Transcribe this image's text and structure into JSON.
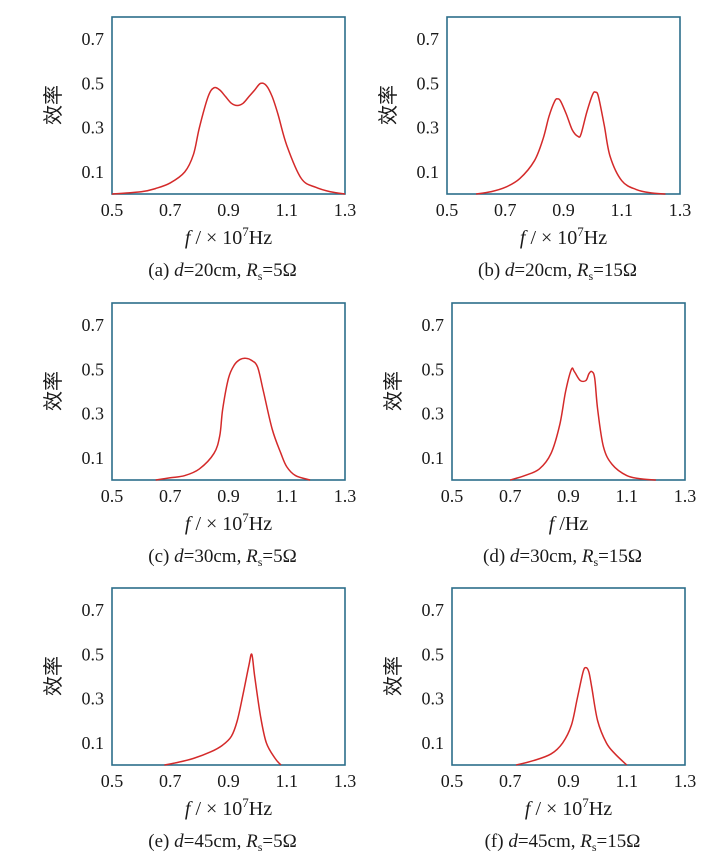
{
  "chart_data": [
    {
      "id": "a",
      "type": "line",
      "caption": "(a) d=20cm, Rs=5Ω",
      "caption_parts": {
        "label": "(a)",
        "d": "=20cm,",
        "r": "=5Ω"
      },
      "xlabel": "f / × 10⁷Hz",
      "xlabel_parts": {
        "pre": "/ × 10",
        "exp": "7",
        "post": "Hz"
      },
      "ylabel": "效率",
      "xlim": [
        0.5,
        1.3
      ],
      "ylim": [
        0,
        0.8
      ],
      "xticks": [
        "0.5",
        "0.7",
        "0.9",
        "1.1",
        "1.3"
      ],
      "yticks": [
        "0.1",
        "0.3",
        "0.5",
        "0.7"
      ],
      "series": [
        {
          "x": [
            0.5,
            0.6,
            0.65,
            0.7,
            0.75,
            0.78,
            0.8,
            0.83,
            0.85,
            0.87,
            0.89,
            0.91,
            0.93,
            0.95,
            0.97,
            0.99,
            1.01,
            1.03,
            1.05,
            1.07,
            1.1,
            1.15,
            1.2,
            1.25,
            1.3
          ],
          "y": [
            0,
            0.01,
            0.025,
            0.05,
            0.1,
            0.18,
            0.3,
            0.44,
            0.48,
            0.47,
            0.44,
            0.41,
            0.4,
            0.41,
            0.44,
            0.47,
            0.5,
            0.49,
            0.44,
            0.36,
            0.22,
            0.07,
            0.03,
            0.01,
            0
          ]
        }
      ]
    },
    {
      "id": "b",
      "type": "line",
      "caption": "(b) d=20cm, Rs=15Ω",
      "caption_parts": {
        "label": "(b)",
        "d": "=20cm,",
        "r": "=15Ω"
      },
      "xlabel": "f / × 10⁷Hz",
      "xlabel_parts": {
        "pre": "/ × 10",
        "exp": "7",
        "post": "Hz"
      },
      "ylabel": "效率",
      "xlim": [
        0.5,
        1.3
      ],
      "ylim": [
        0,
        0.8
      ],
      "xticks": [
        "0.5",
        "0.7",
        "0.9",
        "1.1",
        "1.3"
      ],
      "yticks": [
        "0.1",
        "0.3",
        "0.5",
        "0.7"
      ],
      "series": [
        {
          "x": [
            0.6,
            0.65,
            0.7,
            0.75,
            0.8,
            0.83,
            0.85,
            0.87,
            0.88,
            0.89,
            0.91,
            0.93,
            0.95,
            0.96,
            0.98,
            1.0,
            1.01,
            1.02,
            1.04,
            1.06,
            1.1,
            1.15,
            1.2,
            1.25
          ],
          "y": [
            0,
            0.01,
            0.03,
            0.07,
            0.15,
            0.25,
            0.35,
            0.42,
            0.43,
            0.42,
            0.36,
            0.29,
            0.26,
            0.27,
            0.37,
            0.45,
            0.46,
            0.44,
            0.31,
            0.17,
            0.06,
            0.02,
            0.005,
            0
          ]
        }
      ]
    },
    {
      "id": "c",
      "type": "line",
      "caption": "(c) d=30cm, Rs=5Ω",
      "caption_parts": {
        "label": "(c)",
        "d": "=30cm,",
        "r": "=5Ω"
      },
      "xlabel": "f / × 10⁷Hz",
      "xlabel_parts": {
        "pre": "/ × 10",
        "exp": "7",
        "post": "Hz"
      },
      "ylabel": "效率",
      "xlim": [
        0.5,
        1.3
      ],
      "ylim": [
        0,
        0.8
      ],
      "xticks": [
        "0.5",
        "0.7",
        "0.9",
        "1.1",
        "1.3"
      ],
      "yticks": [
        "0.1",
        "0.3",
        "0.5",
        "0.7"
      ],
      "series": [
        {
          "x": [
            0.65,
            0.7,
            0.75,
            0.8,
            0.85,
            0.87,
            0.88,
            0.9,
            0.92,
            0.94,
            0.96,
            0.98,
            1.0,
            1.02,
            1.05,
            1.08,
            1.1,
            1.13,
            1.18
          ],
          "y": [
            0,
            0.01,
            0.02,
            0.05,
            0.12,
            0.2,
            0.32,
            0.46,
            0.52,
            0.545,
            0.55,
            0.54,
            0.51,
            0.4,
            0.23,
            0.12,
            0.06,
            0.02,
            0
          ]
        }
      ]
    },
    {
      "id": "d",
      "type": "line",
      "caption": "(d) d=30cm, Rs=15Ω",
      "caption_parts": {
        "label": "(d)",
        "d": "=30cm,",
        "r": "=15Ω"
      },
      "xlabel": "f/Hz",
      "xlabel_parts": {
        "pre": "/Hz",
        "exp": "",
        "post": ""
      },
      "ylabel": "效率",
      "xlim": [
        0.5,
        1.3
      ],
      "ylim": [
        0,
        0.8
      ],
      "xticks": [
        "0.5",
        "0.7",
        "0.9",
        "1.1",
        "1.3"
      ],
      "yticks": [
        "0.1",
        "0.3",
        "0.5",
        "0.7"
      ],
      "series": [
        {
          "x": [
            0.7,
            0.75,
            0.8,
            0.84,
            0.87,
            0.89,
            0.91,
            0.92,
            0.94,
            0.96,
            0.97,
            0.98,
            0.99,
            1.0,
            1.02,
            1.05,
            1.1,
            1.15,
            1.2
          ],
          "y": [
            0,
            0.02,
            0.05,
            0.12,
            0.25,
            0.4,
            0.5,
            0.49,
            0.45,
            0.45,
            0.48,
            0.49,
            0.46,
            0.32,
            0.15,
            0.07,
            0.02,
            0.005,
            0
          ]
        }
      ]
    },
    {
      "id": "e",
      "type": "line",
      "caption": "(e) d=45cm, Rs=5Ω",
      "caption_parts": {
        "label": "(e)",
        "d": "=45cm,",
        "r": "=5Ω"
      },
      "xlabel": "f / × 10⁷Hz",
      "xlabel_parts": {
        "pre": "/ × 10",
        "exp": "7",
        "post": "Hz"
      },
      "ylabel": "效率",
      "xlim": [
        0.5,
        1.3
      ],
      "ylim": [
        0,
        0.8
      ],
      "xticks": [
        "0.5",
        "0.7",
        "0.9",
        "1.1",
        "1.3"
      ],
      "yticks": [
        "0.1",
        "0.3",
        "0.5",
        "0.7"
      ],
      "series": [
        {
          "x": [
            0.68,
            0.72,
            0.78,
            0.84,
            0.88,
            0.91,
            0.93,
            0.95,
            0.97,
            0.98,
            0.99,
            1.01,
            1.03,
            1.06,
            1.08
          ],
          "y": [
            0,
            0.01,
            0.03,
            0.06,
            0.09,
            0.13,
            0.2,
            0.32,
            0.45,
            0.5,
            0.4,
            0.22,
            0.1,
            0.03,
            0
          ]
        }
      ]
    },
    {
      "id": "f",
      "type": "line",
      "caption": "(f) d=45cm, Rs=15Ω",
      "caption_parts": {
        "label": "(f)",
        "d": "=45cm,",
        "r": "=15Ω"
      },
      "xlabel": "f / × 10⁷Hz",
      "xlabel_parts": {
        "pre": "/ × 10",
        "exp": "7",
        "post": "Hz"
      },
      "ylabel": "效率",
      "xlim": [
        0.5,
        1.3
      ],
      "ylim": [
        0,
        0.8
      ],
      "xticks": [
        "0.5",
        "0.7",
        "0.9",
        "1.1",
        "1.3"
      ],
      "yticks": [
        "0.1",
        "0.3",
        "0.5",
        "0.7"
      ],
      "series": [
        {
          "x": [
            0.72,
            0.78,
            0.84,
            0.88,
            0.91,
            0.93,
            0.95,
            0.96,
            0.97,
            0.98,
            1.0,
            1.03,
            1.06,
            1.1
          ],
          "y": [
            0,
            0.02,
            0.05,
            0.1,
            0.18,
            0.3,
            0.42,
            0.44,
            0.42,
            0.35,
            0.2,
            0.1,
            0.05,
            0
          ]
        }
      ]
    }
  ],
  "colors": {
    "frame": "#2c6e8a",
    "curve": "#d42a2a",
    "text": "#1a1a1a"
  }
}
